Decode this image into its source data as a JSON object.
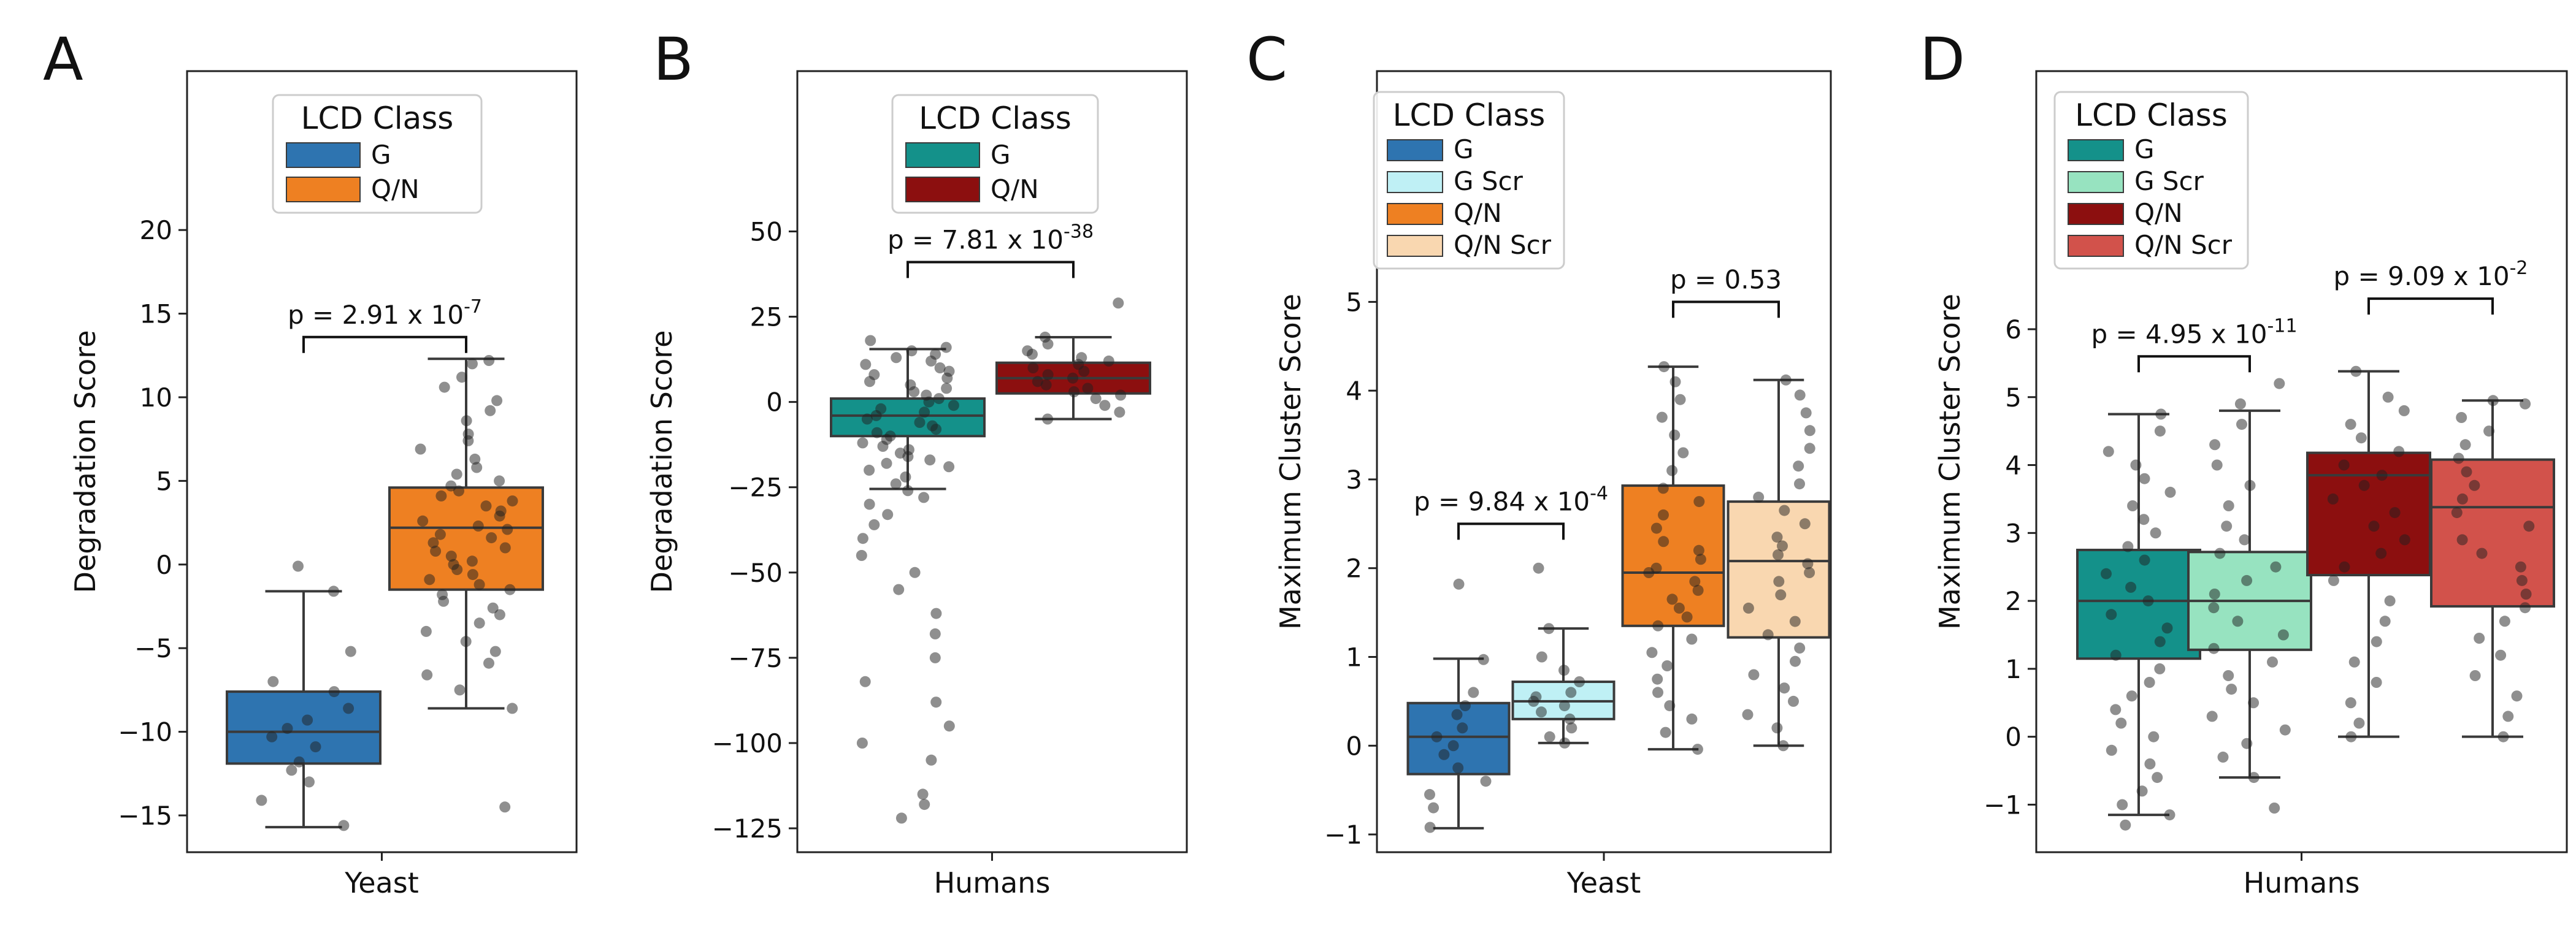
{
  "figure": {
    "panels": [
      "A",
      "B",
      "C",
      "D"
    ]
  },
  "chart_data": [
    {
      "panel": "A",
      "type": "box",
      "xlabel": "Yeast",
      "ylabel": "Degradation Score",
      "ylim": [
        -17.2,
        29.5
      ],
      "yticks": [
        -15,
        -10,
        -5,
        0,
        5,
        10,
        15,
        20
      ],
      "ytick_labels": [
        "−15",
        "−10",
        "−5",
        "0",
        "5",
        "10",
        "15",
        "20"
      ],
      "legend": {
        "title": "LCD Class",
        "position": "top-center",
        "entries": [
          {
            "label": "G",
            "color": "#2e74b0"
          },
          {
            "label": "Q/N",
            "color": "#ee8022"
          }
        ]
      },
      "series": [
        {
          "name": "G",
          "color": "#2e74b0",
          "q1": -11.9,
          "median": -10.0,
          "q3": -7.6,
          "whisker_low": -15.7,
          "whisker_high": -1.6,
          "points": [
            -15.6,
            -14.1,
            -13.0,
            -12.3,
            -11.8,
            -10.9,
            -10.3,
            -9.8,
            -9.3,
            -8.6,
            -7.6,
            -7.0,
            -5.2,
            -1.6,
            -0.1
          ]
        },
        {
          "name": "Q/N",
          "color": "#ee8022",
          "q1": -1.5,
          "median": 2.2,
          "q3": 4.6,
          "whisker_low": -8.6,
          "whisker_high": 12.3,
          "points": [
            12.2,
            12.0,
            11.2,
            10.6,
            9.8,
            9.2,
            8.6,
            7.8,
            7.4,
            6.9,
            6.3,
            5.8,
            5.4,
            5.0,
            4.7,
            4.4,
            4.1,
            3.8,
            3.5,
            3.2,
            2.9,
            2.6,
            2.3,
            2.1,
            1.8,
            1.6,
            1.3,
            1.0,
            0.8,
            0.5,
            0.2,
            0.0,
            -0.3,
            -0.6,
            -0.9,
            -1.2,
            -1.5,
            -1.8,
            -2.2,
            -2.6,
            -3.0,
            -3.5,
            -4.0,
            -4.6,
            -5.2,
            -5.9,
            -6.6,
            -7.5,
            -8.6,
            -14.5
          ]
        }
      ],
      "comparisons": [
        {
          "from": "G",
          "to": "Q/N",
          "y": 13.6,
          "p_label": "p = 2.91 x 10",
          "p_exponent": "-7"
        }
      ]
    },
    {
      "panel": "B",
      "type": "box",
      "xlabel": "Humans",
      "ylabel": "Degradation Score",
      "ylim": [
        -132,
        97
      ],
      "yticks": [
        -125,
        -100,
        -75,
        -50,
        -25,
        0,
        25,
        50
      ],
      "ytick_labels": [
        "−125",
        "−100",
        "−75",
        "−50",
        "−25",
        "0",
        "25",
        "50"
      ],
      "legend": {
        "title": "LCD Class",
        "position": "top-center",
        "entries": [
          {
            "label": "G",
            "color": "#14918a"
          },
          {
            "label": "Q/N",
            "color": "#8c0f0f"
          }
        ]
      },
      "series": [
        {
          "name": "G",
          "color": "#14918a",
          "q1": -10.0,
          "median": -4.0,
          "q3": 1.0,
          "whisker_low": -25.5,
          "whisker_high": 15.5,
          "points": [
            18,
            16,
            15,
            14,
            13,
            12,
            11,
            10,
            9,
            8,
            7,
            6,
            5,
            4,
            3,
            2,
            1,
            0,
            -1,
            -2,
            -3,
            -4,
            -5,
            -6,
            -7,
            -8,
            -9,
            -10,
            -11,
            -12,
            -13,
            -14,
            -15,
            -16,
            -17,
            -18,
            -19,
            -20,
            -22,
            -24,
            -26,
            -28,
            -30,
            -33,
            -36,
            -40,
            -45,
            -50,
            -55,
            -62,
            -68,
            -75,
            -82,
            -88,
            -95,
            -100,
            -105,
            -115,
            -118,
            -122
          ]
        },
        {
          "name": "Q/N",
          "color": "#8c0f0f",
          "q1": 2.5,
          "median": 7.0,
          "q3": 11.5,
          "whisker_low": -5.0,
          "whisker_high": 19.0,
          "points": [
            29,
            19,
            17,
            15,
            14,
            13,
            12,
            11,
            10,
            9,
            8,
            7,
            6,
            5,
            4,
            3,
            2,
            1,
            -1,
            -3,
            -5
          ]
        }
      ],
      "comparisons": [
        {
          "from": "G",
          "to": "Q/N",
          "y": 41,
          "p_label": "p = 7.81 x 10",
          "p_exponent": "-38"
        }
      ]
    },
    {
      "panel": "C",
      "type": "box",
      "xlabel": "Yeast",
      "ylabel": "Maximum Cluster Score",
      "ylim": [
        -1.2,
        7.6
      ],
      "yticks": [
        -1,
        0,
        1,
        2,
        3,
        4,
        5
      ],
      "ytick_labels": [
        "−1",
        "0",
        "1",
        "2",
        "3",
        "4",
        "5"
      ],
      "legend": {
        "title": "LCD Class",
        "position": "top-left",
        "entries": [
          {
            "label": "G",
            "color": "#2e74b0"
          },
          {
            "label": "G Scr",
            "color": "#bff0f5"
          },
          {
            "label": "Q/N",
            "color": "#ee8022"
          },
          {
            "label": "Q/N Scr",
            "color": "#f9d7b0"
          }
        ]
      },
      "series": [
        {
          "name": "G",
          "color": "#2e74b0",
          "q1": -0.32,
          "median": 0.1,
          "q3": 0.48,
          "whisker_low": -0.93,
          "whisker_high": 0.98,
          "points": [
            1.82,
            0.97,
            0.6,
            0.45,
            0.35,
            0.2,
            0.1,
            0.0,
            -0.1,
            -0.25,
            -0.4,
            -0.55,
            -0.7,
            -0.92
          ]
        },
        {
          "name": "G Scr",
          "color": "#bff0f5",
          "q1": 0.3,
          "median": 0.5,
          "q3": 0.72,
          "whisker_low": 0.03,
          "whisker_high": 1.32,
          "points": [
            2.0,
            1.32,
            1.0,
            0.85,
            0.72,
            0.6,
            0.55,
            0.5,
            0.45,
            0.38,
            0.3,
            0.2,
            0.1,
            0.03
          ]
        },
        {
          "name": "Q/N",
          "color": "#ee8022",
          "q1": 1.35,
          "median": 1.95,
          "q3": 2.93,
          "whisker_low": -0.04,
          "whisker_high": 4.27,
          "points": [
            4.27,
            4.1,
            3.9,
            3.7,
            3.5,
            3.3,
            3.1,
            2.9,
            2.75,
            2.6,
            2.45,
            2.3,
            2.2,
            2.1,
            2.0,
            1.95,
            1.85,
            1.75,
            1.65,
            1.55,
            1.45,
            1.35,
            1.2,
            1.05,
            0.9,
            0.75,
            0.6,
            0.45,
            0.3,
            0.15,
            -0.04
          ]
        },
        {
          "name": "Q/N Scr",
          "color": "#f9d7b0",
          "q1": 1.22,
          "median": 2.08,
          "q3": 2.75,
          "whisker_low": 0.0,
          "whisker_high": 4.12,
          "points": [
            4.12,
            3.95,
            3.75,
            3.55,
            3.35,
            3.15,
            2.95,
            2.8,
            2.65,
            2.5,
            2.35,
            2.25,
            2.15,
            2.05,
            1.95,
            1.85,
            1.7,
            1.55,
            1.4,
            1.25,
            1.1,
            0.95,
            0.8,
            0.65,
            0.5,
            0.35,
            0.2,
            0.0
          ]
        }
      ],
      "comparisons": [
        {
          "from": "G",
          "to": "G Scr",
          "y": 2.5,
          "p_label": "p = 9.84 x 10",
          "p_exponent": "-4"
        },
        {
          "from": "Q/N",
          "to": "Q/N Scr",
          "y": 5.0,
          "p_label": "p = 0.53",
          "p_exponent": ""
        }
      ]
    },
    {
      "panel": "D",
      "type": "box",
      "xlabel": "Humans",
      "ylabel": "Maximum Cluster Score",
      "ylim": [
        -1.7,
        9.8
      ],
      "yticks": [
        -1,
        0,
        1,
        2,
        3,
        4,
        5,
        6
      ],
      "ytick_labels": [
        "−1",
        "0",
        "1",
        "2",
        "3",
        "4",
        "5",
        "6"
      ],
      "legend": {
        "title": "LCD Class",
        "position": "top-left",
        "entries": [
          {
            "label": "G",
            "color": "#14918a"
          },
          {
            "label": "G Scr",
            "color": "#97e3c0"
          },
          {
            "label": "Q/N",
            "color": "#8c0f0f"
          },
          {
            "label": "Q/N Scr",
            "color": "#d2524b"
          }
        ]
      },
      "series": [
        {
          "name": "G",
          "color": "#14918a",
          "q1": 1.15,
          "median": 2.0,
          "q3": 2.75,
          "whisker_low": -1.15,
          "whisker_high": 4.75,
          "points": [
            4.75,
            4.5,
            4.2,
            4.0,
            3.8,
            3.6,
            3.4,
            3.2,
            3.0,
            2.8,
            2.6,
            2.4,
            2.2,
            2.0,
            1.8,
            1.6,
            1.4,
            1.2,
            1.0,
            0.8,
            0.6,
            0.4,
            0.2,
            0.0,
            -0.2,
            -0.4,
            -0.6,
            -0.8,
            -1.0,
            -1.15,
            -1.3
          ]
        },
        {
          "name": "G Scr",
          "color": "#97e3c0",
          "q1": 1.28,
          "median": 2.0,
          "q3": 2.72,
          "whisker_low": -0.6,
          "whisker_high": 4.8,
          "points": [
            5.2,
            4.9,
            4.6,
            4.3,
            4.0,
            3.7,
            3.4,
            3.1,
            2.9,
            2.7,
            2.5,
            2.3,
            2.1,
            1.9,
            1.7,
            1.5,
            1.3,
            1.1,
            0.9,
            0.7,
            0.5,
            0.3,
            0.1,
            -0.1,
            -0.3,
            -0.6,
            -1.05
          ]
        },
        {
          "name": "Q/N",
          "color": "#8c0f0f",
          "q1": 2.38,
          "median": 3.85,
          "q3": 4.18,
          "whisker_low": 0.0,
          "whisker_high": 5.38,
          "points": [
            5.38,
            5.0,
            4.8,
            4.6,
            4.4,
            4.2,
            4.0,
            3.85,
            3.7,
            3.5,
            3.3,
            3.1,
            2.9,
            2.7,
            2.5,
            2.3,
            2.0,
            1.7,
            1.4,
            1.1,
            0.8,
            0.5,
            0.2,
            0.0
          ]
        },
        {
          "name": "Q/N Scr",
          "color": "#d2524b",
          "q1": 1.92,
          "median": 3.38,
          "q3": 4.08,
          "whisker_low": 0.0,
          "whisker_high": 4.95,
          "points": [
            4.95,
            4.9,
            4.7,
            4.5,
            4.3,
            4.1,
            3.9,
            3.7,
            3.5,
            3.3,
            3.1,
            2.9,
            2.7,
            2.5,
            2.3,
            2.1,
            1.9,
            1.7,
            1.45,
            1.2,
            0.9,
            0.6,
            0.3,
            0.0
          ]
        }
      ],
      "comparisons": [
        {
          "from": "G",
          "to": "G Scr",
          "y": 5.6,
          "p_label": "p = 4.95 x 10",
          "p_exponent": "-11"
        },
        {
          "from": "Q/N",
          "to": "Q/N Scr",
          "y": 6.45,
          "p_label": "p = 9.09 x 10",
          "p_exponent": "-2"
        }
      ]
    }
  ]
}
